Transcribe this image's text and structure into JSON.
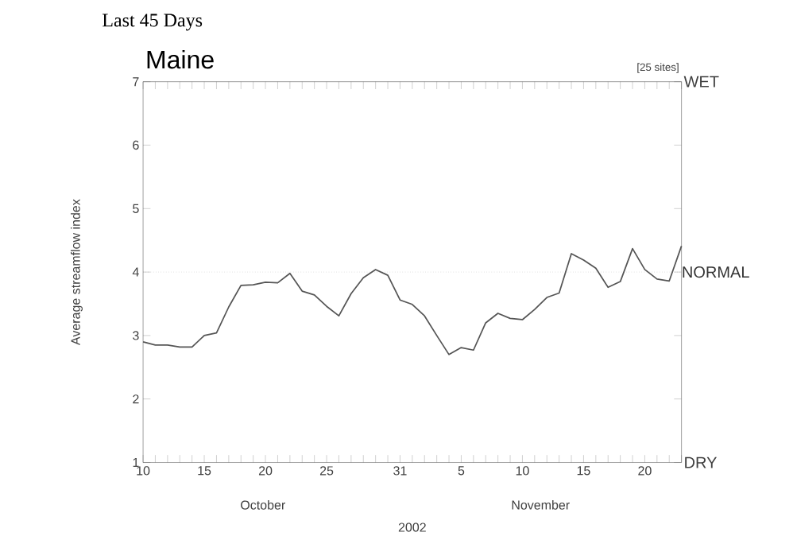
{
  "chart_data": {
    "type": "line",
    "title": "Last 45 Days",
    "subtitle": "Maine",
    "xlabel": "2002",
    "ylabel": "Average streamflow index",
    "annotations": [
      "[25 sites]",
      "October",
      "November",
      "WET",
      "DRY"
    ],
    "x": [
      "2002-10-10",
      "2002-10-11",
      "2002-10-12",
      "2002-10-13",
      "2002-10-14",
      "2002-10-15",
      "2002-10-16",
      "2002-10-17",
      "2002-10-18",
      "2002-10-19",
      "2002-10-20",
      "2002-10-21",
      "2002-10-22",
      "2002-10-23",
      "2002-10-24",
      "2002-10-25",
      "2002-10-26",
      "2002-10-27",
      "2002-10-28",
      "2002-10-29",
      "2002-10-30",
      "2002-10-31",
      "2002-11-01",
      "2002-11-02",
      "2002-11-03",
      "2002-11-04",
      "2002-11-05",
      "2002-11-06",
      "2002-11-07",
      "2002-11-08",
      "2002-11-09",
      "2002-11-10",
      "2002-11-11",
      "2002-11-12",
      "2002-11-13",
      "2002-11-14",
      "2002-11-15",
      "2002-11-16",
      "2002-11-17",
      "2002-11-18",
      "2002-11-19",
      "2002-11-20",
      "2002-11-21",
      "2002-11-22",
      "2002-11-23"
    ],
    "series": [
      {
        "color": "#555555",
        "values": [
          2.9,
          2.85,
          2.85,
          2.82,
          2.82,
          3.0,
          3.04,
          3.45,
          3.79,
          3.8,
          3.84,
          3.83,
          3.98,
          3.7,
          3.64,
          3.46,
          3.31,
          3.66,
          3.91,
          4.04,
          3.95,
          3.56,
          3.49,
          3.31,
          3.0,
          2.7,
          2.81,
          2.77,
          3.2,
          3.35,
          3.27,
          3.25,
          3.41,
          3.6,
          3.67,
          4.29,
          4.19,
          4.06,
          3.76,
          3.85,
          4.37,
          4.04,
          3.89,
          3.86,
          4.41
        ]
      }
    ],
    "xlim": [
      "2002-10-10",
      "2002-11-23"
    ],
    "xticks": [
      {
        "value": "2002-10-10",
        "label": "10"
      },
      {
        "value": "2002-10-11",
        "label": null
      },
      {
        "value": "2002-10-12",
        "label": null
      },
      {
        "value": "2002-10-13",
        "label": null
      },
      {
        "value": "2002-10-14",
        "label": null
      },
      {
        "value": "2002-10-15",
        "label": "15"
      },
      {
        "value": "2002-10-16",
        "label": null
      },
      {
        "value": "2002-10-17",
        "label": null
      },
      {
        "value": "2002-10-18",
        "label": null
      },
      {
        "value": "2002-10-19",
        "label": null
      },
      {
        "value": "2002-10-20",
        "label": "20"
      },
      {
        "value": "2002-10-21",
        "label": null
      },
      {
        "value": "2002-10-22",
        "label": null
      },
      {
        "value": "2002-10-23",
        "label": null
      },
      {
        "value": "2002-10-24",
        "label": null
      },
      {
        "value": "2002-10-25",
        "label": "25"
      },
      {
        "value": "2002-10-26",
        "label": null
      },
      {
        "value": "2002-10-27",
        "label": null
      },
      {
        "value": "2002-10-28",
        "label": null
      },
      {
        "value": "2002-10-29",
        "label": null
      },
      {
        "value": "2002-10-30",
        "label": null
      },
      {
        "value": "2002-10-31",
        "label": "31"
      },
      {
        "value": "2002-11-01",
        "label": null
      },
      {
        "value": "2002-11-02",
        "label": null
      },
      {
        "value": "2002-11-03",
        "label": null
      },
      {
        "value": "2002-11-04",
        "label": null
      },
      {
        "value": "2002-11-05",
        "label": "5"
      },
      {
        "value": "2002-11-06",
        "label": null
      },
      {
        "value": "2002-11-07",
        "label": null
      },
      {
        "value": "2002-11-08",
        "label": null
      },
      {
        "value": "2002-11-09",
        "label": null
      },
      {
        "value": "2002-11-10",
        "label": "10"
      },
      {
        "value": "2002-11-11",
        "label": null
      },
      {
        "value": "2002-11-12",
        "label": null
      },
      {
        "value": "2002-11-13",
        "label": null
      },
      {
        "value": "2002-11-14",
        "label": null
      },
      {
        "value": "2002-11-15",
        "label": "15"
      },
      {
        "value": "2002-11-16",
        "label": null
      },
      {
        "value": "2002-11-17",
        "label": null
      },
      {
        "value": "2002-11-18",
        "label": null
      },
      {
        "value": "2002-11-19",
        "label": null
      },
      {
        "value": "2002-11-20",
        "label": "20"
      },
      {
        "value": "2002-11-21",
        "label": null
      },
      {
        "value": "2002-11-22",
        "label": null
      },
      {
        "value": "2002-11-23",
        "label": null
      }
    ],
    "ylim": [
      1,
      7
    ],
    "yticks": [
      1,
      2,
      3,
      4,
      5,
      6,
      7
    ],
    "ref_lines": [
      {
        "axis": "y",
        "value": 4,
        "label": "NORMAL",
        "color": "#999999",
        "line_style": "dotted"
      }
    ],
    "grid": false,
    "marker": "none",
    "line_style": "solid"
  }
}
